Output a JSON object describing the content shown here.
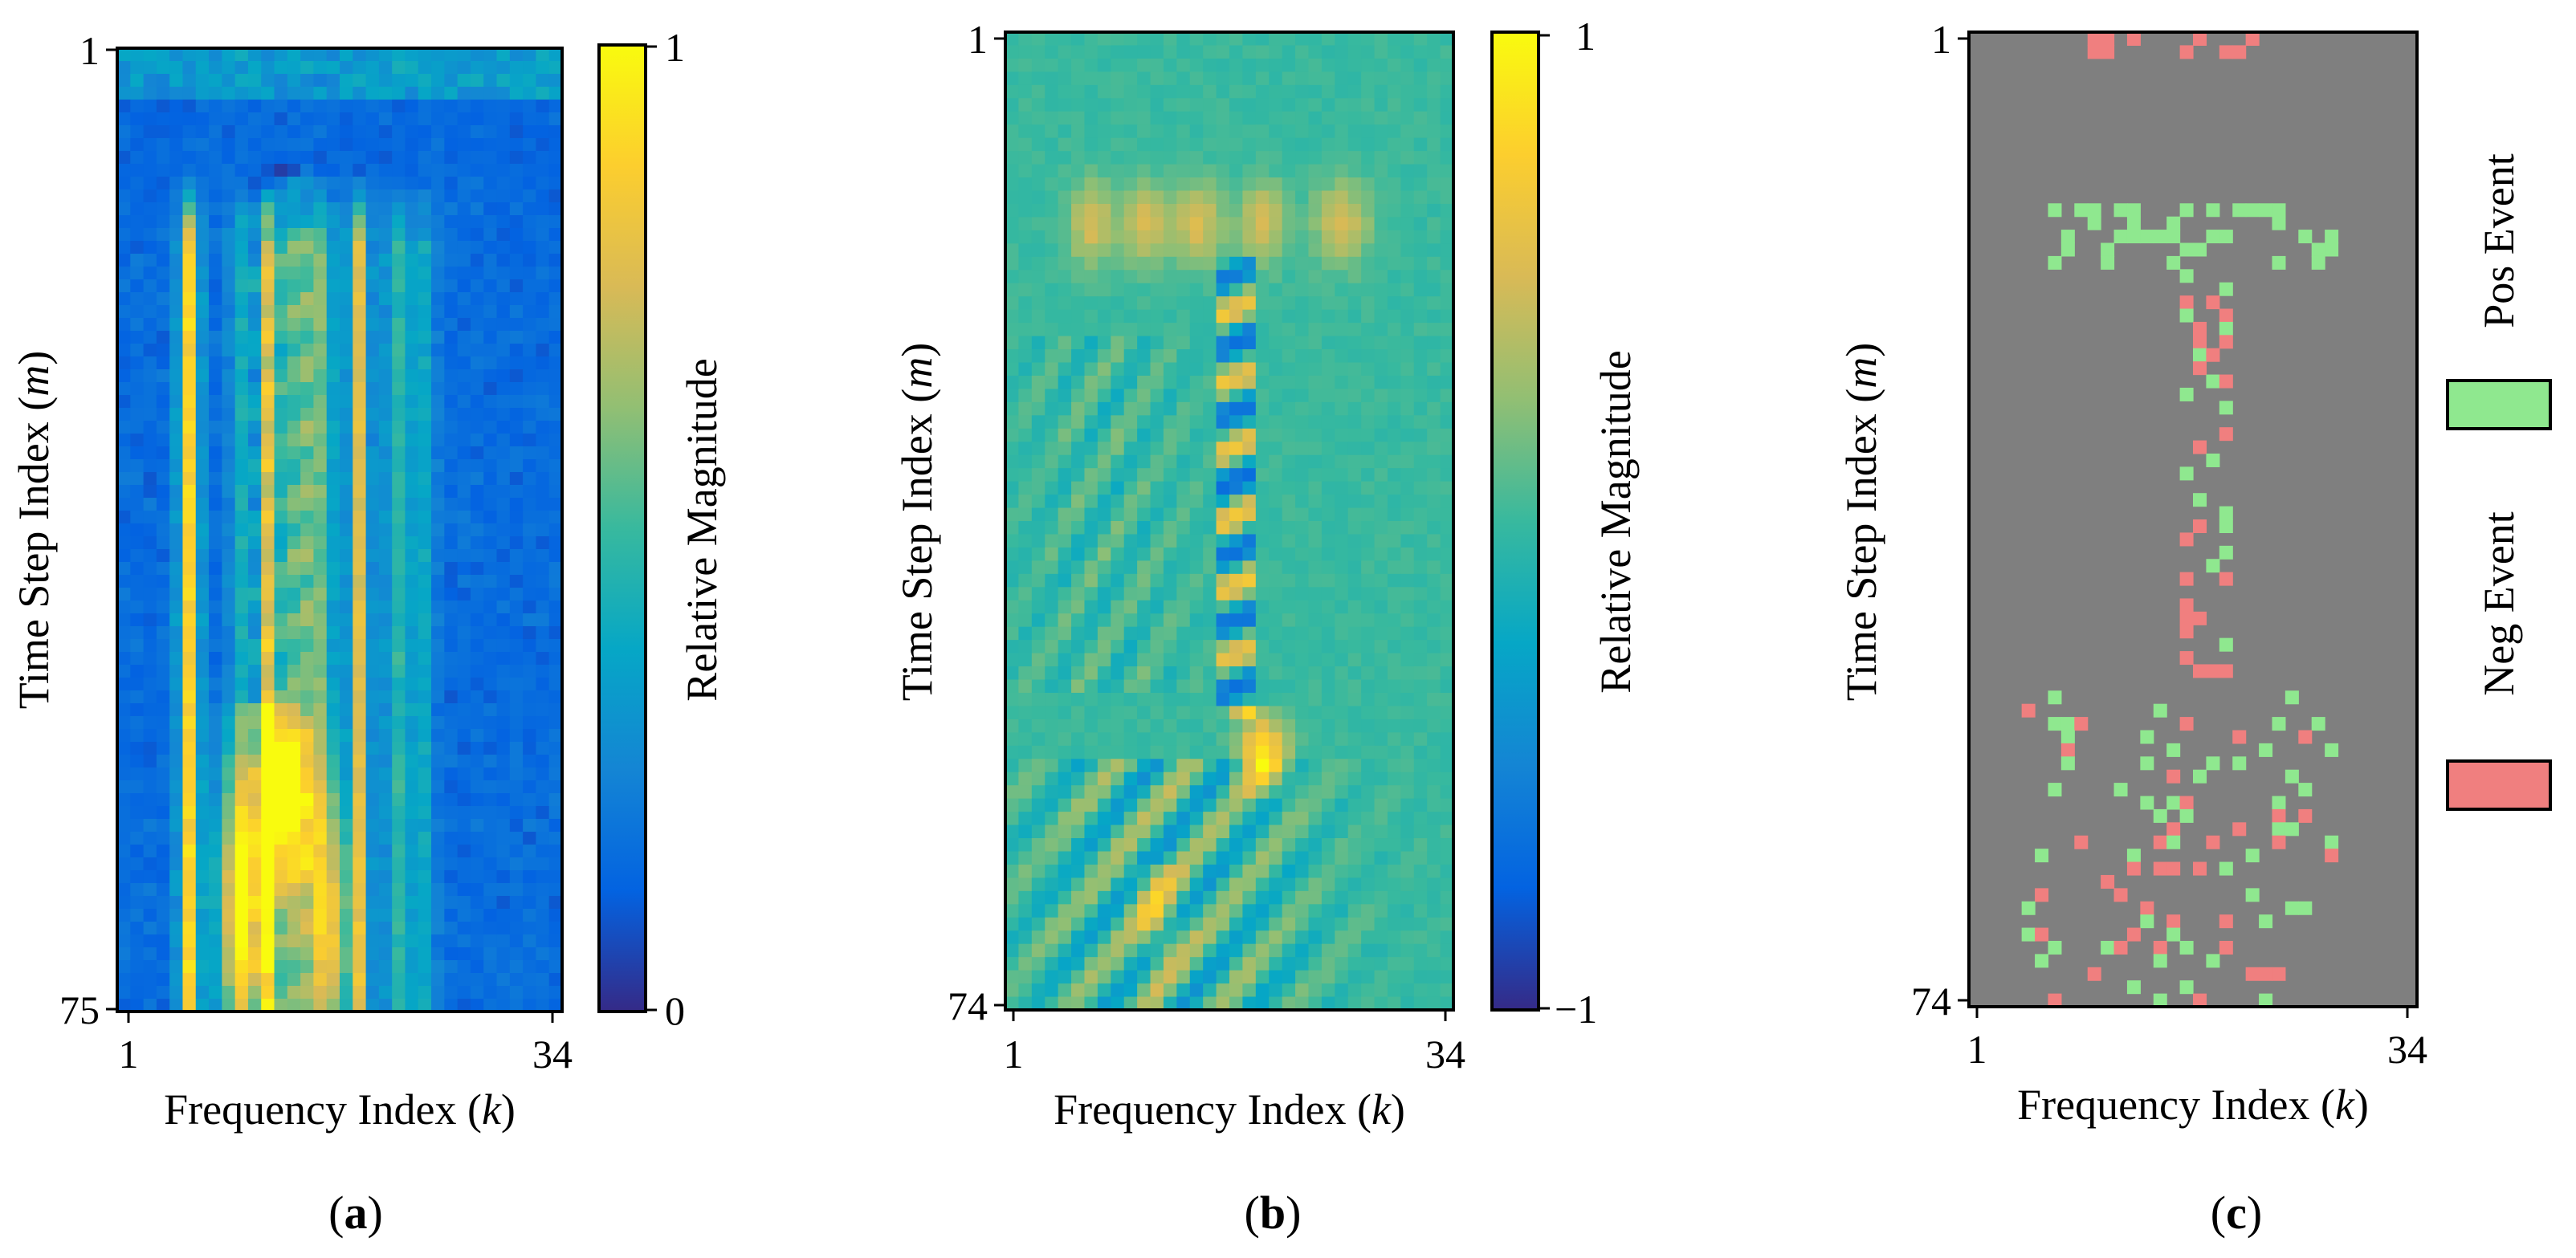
{
  "chart_data": [
    {
      "panel": "(a)",
      "panel_bold": "a",
      "type": "heatmap",
      "xlabel_text": "Frequency Index (",
      "xlabel_var": "k",
      "xlabel_close": ")",
      "ylabel_text": "Time Step Index (",
      "ylabel_var": "m",
      "ylabel_close": ")",
      "x_range": [
        1,
        34
      ],
      "y_range": [
        1,
        75
      ],
      "x_ticks": [
        "1",
        "34"
      ],
      "y_ticks": [
        "1",
        "75"
      ],
      "colormap": "parula",
      "colorbar": {
        "label": "Relative Magnitude",
        "min": 0,
        "max": 1,
        "ticks": [
          "1",
          "0"
        ]
      }
    },
    {
      "panel": "(b)",
      "panel_bold": "b",
      "type": "heatmap",
      "xlabel_text": "Frequency Index (",
      "xlabel_var": "k",
      "xlabel_close": ")",
      "ylabel_text": "Time Step Index (",
      "ylabel_var": "m",
      "ylabel_close": ")",
      "x_range": [
        1,
        34
      ],
      "y_range": [
        1,
        74
      ],
      "x_ticks": [
        "1",
        "34"
      ],
      "y_ticks": [
        "1",
        "74"
      ],
      "colormap": "parula",
      "colorbar": {
        "label": "Relative Magnitude",
        "min": -1,
        "max": 1,
        "ticks": [
          "1",
          "−1"
        ]
      }
    },
    {
      "panel": "(c)",
      "panel_bold": "c",
      "type": "heatmap",
      "xlabel_text": "Frequency Index (",
      "xlabel_var": "k",
      "xlabel_close": ")",
      "ylabel_text": "Time Step Index (",
      "ylabel_var": "m",
      "ylabel_close": ")",
      "x_range": [
        1,
        34
      ],
      "y_range": [
        1,
        74
      ],
      "x_ticks": [
        "1",
        "34"
      ],
      "y_ticks": [
        "1",
        "74"
      ],
      "background_color": "#7f7f7f",
      "legend": [
        {
          "name": "Pos Event",
          "color": "#8fe88f"
        },
        {
          "name": "Neg Event",
          "color": "#f07f7f"
        }
      ]
    }
  ]
}
